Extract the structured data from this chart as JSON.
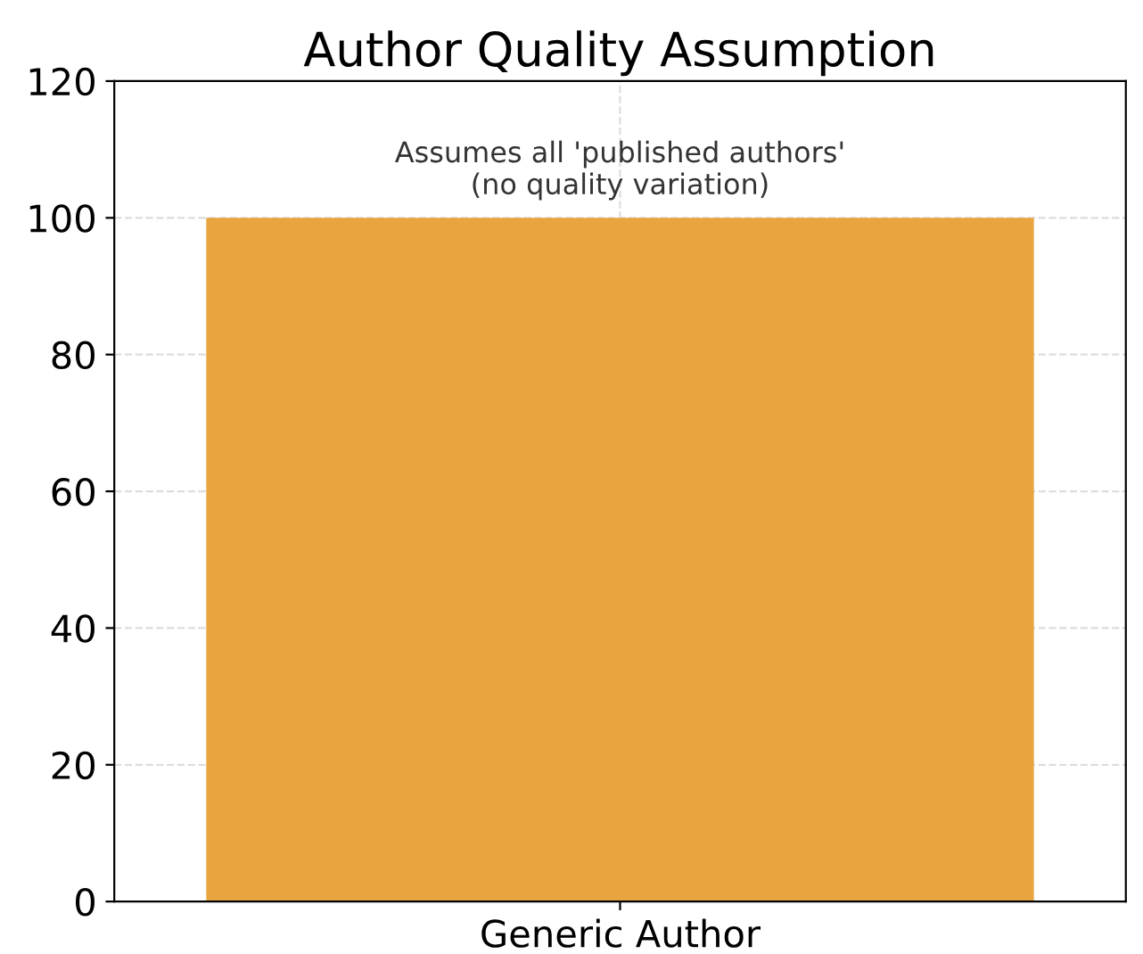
{
  "chart_data": {
    "type": "bar",
    "title": "Author Quality Assumption",
    "categories": [
      "Generic Author"
    ],
    "values": [
      100
    ],
    "color": "#e8a43f",
    "ylim": [
      0,
      120
    ],
    "yticks": [
      0,
      20,
      40,
      60,
      80,
      100,
      120
    ],
    "grid": true,
    "line_style": "dashed",
    "annotations": [
      "Assumes all 'published authors'\n(no quality variation)"
    ]
  }
}
